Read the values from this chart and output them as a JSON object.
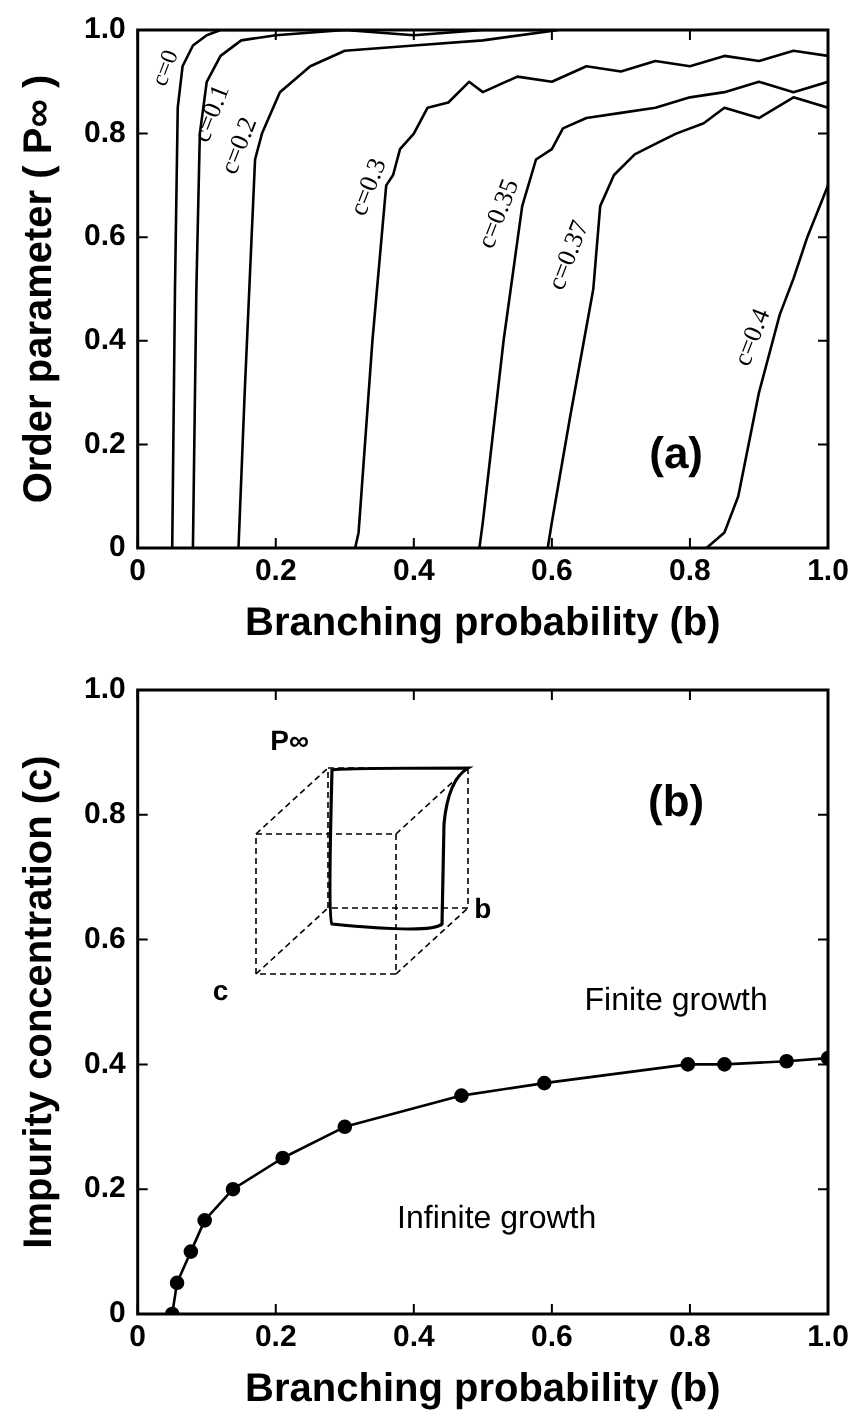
{
  "chart_data": [
    {
      "type": "line",
      "xlabel": "Branching probability (b)",
      "ylabel": "Order parameter ( P∞ )",
      "xlim": [
        0,
        1
      ],
      "ylim": [
        0,
        1
      ],
      "xticks": [
        0,
        0.2,
        0.4,
        0.6,
        0.8,
        {
          "value": 1,
          "label": "1.0"
        }
      ],
      "yticks": [
        0,
        0.2,
        0.4,
        0.6,
        0.8,
        {
          "value": 1,
          "label": "1.0"
        }
      ],
      "annotations": [
        "(a)"
      ],
      "grid": false,
      "series": [
        {
          "name": "c=0",
          "color": "#000000",
          "x": [
            0.05,
            0.054,
            0.058,
            0.065,
            0.08,
            0.1,
            0.12,
            0.2,
            0.3
          ],
          "values": [
            0,
            0.5,
            0.85,
            0.93,
            0.97,
            0.99,
            1.0,
            1.0,
            1.0
          ]
        },
        {
          "name": "c=0.1",
          "color": "#000000",
          "x": [
            0.08,
            0.085,
            0.09,
            0.1,
            0.12,
            0.15,
            0.2,
            0.3,
            0.4,
            0.5,
            0.6
          ],
          "values": [
            0,
            0.5,
            0.8,
            0.9,
            0.95,
            0.98,
            0.99,
            1.0,
            0.99,
            1.0,
            1.0
          ]
        },
        {
          "name": "c=0.2",
          "color": "#000000",
          "x": [
            0.146,
            0.155,
            0.165,
            0.17,
            0.18,
            0.206,
            0.25,
            0.3,
            0.4,
            0.5,
            0.61
          ],
          "values": [
            0,
            0.3,
            0.6,
            0.75,
            0.8,
            0.88,
            0.93,
            0.96,
            0.97,
            0.98,
            1.0
          ]
        },
        {
          "name": "c=0.3",
          "color": "#000000",
          "x": [
            0.315,
            0.32,
            0.34,
            0.36,
            0.37,
            0.38,
            0.4,
            0.42,
            0.45,
            0.48,
            0.5,
            0.55,
            0.6,
            0.65,
            0.7,
            0.75,
            0.8,
            0.85,
            0.9,
            0.95,
            1.0
          ],
          "values": [
            0,
            0.03,
            0.4,
            0.7,
            0.72,
            0.77,
            0.8,
            0.85,
            0.86,
            0.9,
            0.88,
            0.91,
            0.9,
            0.93,
            0.92,
            0.94,
            0.93,
            0.95,
            0.94,
            0.96,
            0.95
          ]
        },
        {
          "name": "c=0.35",
          "color": "#000000",
          "x": [
            0.495,
            0.5,
            0.53,
            0.557,
            0.577,
            0.6,
            0.616,
            0.65,
            0.7,
            0.75,
            0.8,
            0.85,
            0.9,
            0.95,
            1.0
          ],
          "values": [
            0,
            0.05,
            0.4,
            0.66,
            0.75,
            0.77,
            0.81,
            0.83,
            0.84,
            0.85,
            0.87,
            0.88,
            0.9,
            0.88,
            0.9
          ]
        },
        {
          "name": "c=0.37",
          "color": "#000000",
          "x": [
            0.594,
            0.6,
            0.626,
            0.66,
            0.67,
            0.69,
            0.72,
            0.75,
            0.78,
            0.82,
            0.85,
            0.9,
            0.95,
            1.0
          ],
          "values": [
            0,
            0.05,
            0.25,
            0.5,
            0.66,
            0.72,
            0.76,
            0.78,
            0.8,
            0.82,
            0.85,
            0.83,
            0.87,
            0.85
          ]
        },
        {
          "name": "c=0.4",
          "color": "#000000",
          "x": [
            0.824,
            0.85,
            0.87,
            0.9,
            0.93,
            0.95,
            0.97,
            1.0
          ],
          "values": [
            0,
            0.03,
            0.1,
            0.3,
            0.45,
            0.52,
            0.6,
            0.7
          ]
        }
      ]
    },
    {
      "type": "line",
      "xlabel": "Branching probability (b)",
      "ylabel": "Impurity concentration (c)",
      "xlim": [
        0,
        1
      ],
      "ylim": [
        0,
        1
      ],
      "xticks": [
        0,
        0.2,
        0.4,
        0.6,
        0.8,
        {
          "value": 1,
          "label": "1.0"
        }
      ],
      "yticks": [
        0,
        0.2,
        0.4,
        0.6,
        0.8,
        {
          "value": 1,
          "label": "1.0"
        }
      ],
      "annotations": [
        "(b)",
        "Finite growth",
        "Infinite growth",
        "P∞",
        "b",
        "c"
      ],
      "grid": false,
      "marker": "circle",
      "series": [
        {
          "color": "#000000",
          "x": [
            0.05,
            0.057,
            0.077,
            0.097,
            0.138,
            0.21,
            0.3,
            0.469,
            0.589,
            0.797,
            0.85,
            0.94,
            1.0
          ],
          "values": [
            0,
            0.05,
            0.1,
            0.15,
            0.2,
            0.25,
            0.3,
            0.35,
            0.37,
            0.4,
            0.4,
            0.405,
            0.41
          ]
        }
      ]
    }
  ]
}
